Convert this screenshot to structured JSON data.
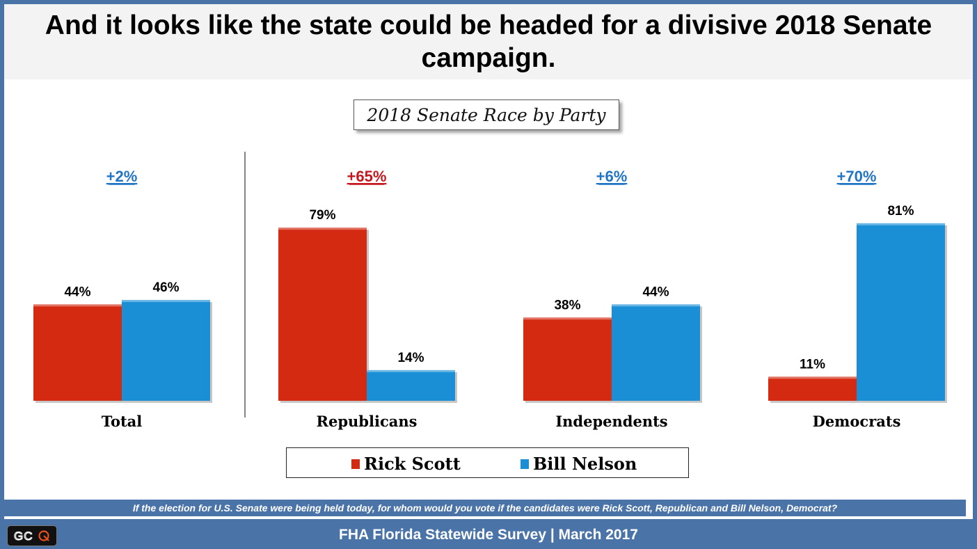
{
  "slide": {
    "title": "And it looks like the state could be headed for a divisive 2018 Senate campaign.",
    "subtitle": "2018 Senate Race by Party",
    "question": "If the election for U.S. Senate were being held today, for whom would you vote if the candidates were Rick Scott, Republican and Bill Nelson, Democrat?",
    "footer": "FHA Florida Statewide Survey | March 2017",
    "logo_text": "GCQ"
  },
  "colors": {
    "scott": "#d42a12",
    "nelson": "#1a8fd6",
    "margin_blue": "#1f74c4",
    "margin_red": "#c4161c"
  },
  "chart_data": {
    "type": "bar",
    "categories": [
      "Total",
      "Republicans",
      "Independents",
      "Democrats"
    ],
    "series": [
      {
        "name": "Rick Scott",
        "values": [
          44,
          79,
          38,
          11
        ]
      },
      {
        "name": "Bill Nelson",
        "values": [
          46,
          14,
          44,
          81
        ]
      }
    ],
    "data_labels": [
      [
        "44%",
        "79%",
        "38%",
        "11%"
      ],
      [
        "46%",
        "14%",
        "44%",
        "81%"
      ]
    ],
    "margins": [
      {
        "label": "+2%",
        "leader": "Bill Nelson"
      },
      {
        "label": "+65%",
        "leader": "Rick Scott"
      },
      {
        "label": "+6%",
        "leader": "Bill Nelson"
      },
      {
        "label": "+70%",
        "leader": "Bill Nelson"
      }
    ],
    "ylim": [
      0,
      100
    ],
    "legend_position": "bottom",
    "grid": false
  }
}
